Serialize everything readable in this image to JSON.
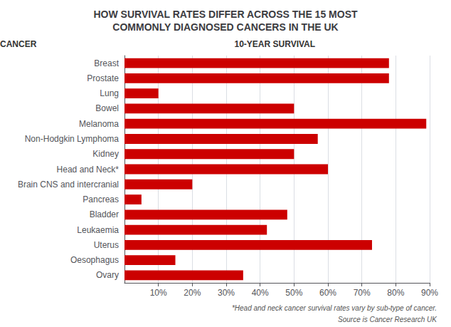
{
  "chart_data": {
    "type": "bar",
    "orientation": "horizontal",
    "title": "HOW SURVIVAL RATES DIFFER ACROSS THE 15 MOST\nCOMMONLY DIAGNOSED CANCERS IN THE UK",
    "ylabel": "CANCER",
    "xlabel": "10-YEAR SURVIVAL",
    "annotations": [
      "*Head and neck cancer survival rates vary by sub-type of cancer.",
      "Source is Cancer Research UK"
    ],
    "categories": [
      "Breast",
      "Prostate",
      "Lung",
      "Bowel",
      "Melanoma",
      "Non-Hodgkin Lymphoma",
      "Kidney",
      "Head and Neck*",
      "Brain CNS and intercranial",
      "Pancreas",
      "Bladder",
      "Leukaemia",
      "Uterus",
      "Oesophagus",
      "Ovary"
    ],
    "values": [
      78,
      78,
      10,
      50,
      89,
      57,
      50,
      60,
      20,
      5,
      48,
      42,
      73,
      15,
      35
    ],
    "color": "#cc0000",
    "xlim": [
      0,
      90
    ],
    "xticks": [
      {
        "value": 10,
        "label": "10%"
      },
      {
        "value": 20,
        "label": "20%"
      },
      {
        "value": 30,
        "label": "30%"
      },
      {
        "value": 40,
        "label": "40%"
      },
      {
        "value": 50,
        "label": "50%"
      },
      {
        "value": 60,
        "label": "60%"
      },
      {
        "value": 70,
        "label": "70%"
      },
      {
        "value": 80,
        "label": "80%"
      },
      {
        "value": 90,
        "label": "90%"
      }
    ],
    "grid": true
  }
}
